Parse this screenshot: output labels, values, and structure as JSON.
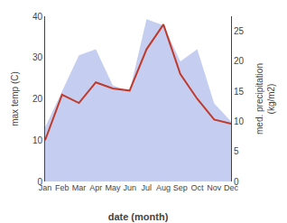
{
  "chart_data": {
    "type": "line",
    "categories": [
      "Jan",
      "Feb",
      "Mar",
      "Apr",
      "May",
      "Jun",
      "Jul",
      "Aug",
      "Sep",
      "Oct",
      "Nov",
      "Dec"
    ],
    "series": [
      {
        "type": "area",
        "color": "#c5cef0",
        "axis": "y2",
        "values": [
          9,
          15,
          21,
          22,
          16,
          15,
          27,
          26,
          20,
          22,
          13,
          10
        ]
      },
      {
        "type": "line",
        "color": "#c0392b",
        "values": [
          10,
          21,
          19,
          24,
          22.5,
          22,
          32,
          38,
          26,
          20,
          15,
          14
        ]
      }
    ],
    "xlabel": "date (month)",
    "ylabel": "max temp (C)",
    "y2label": "med. precipitation\n(kg/m2)",
    "ylim": [
      0,
      40
    ],
    "yticks": [
      0,
      10,
      20,
      30,
      40
    ],
    "y2lim": [
      0,
      27.5
    ],
    "y2ticks": [
      0,
      5,
      10,
      15,
      20,
      25
    ],
    "grid": false
  }
}
